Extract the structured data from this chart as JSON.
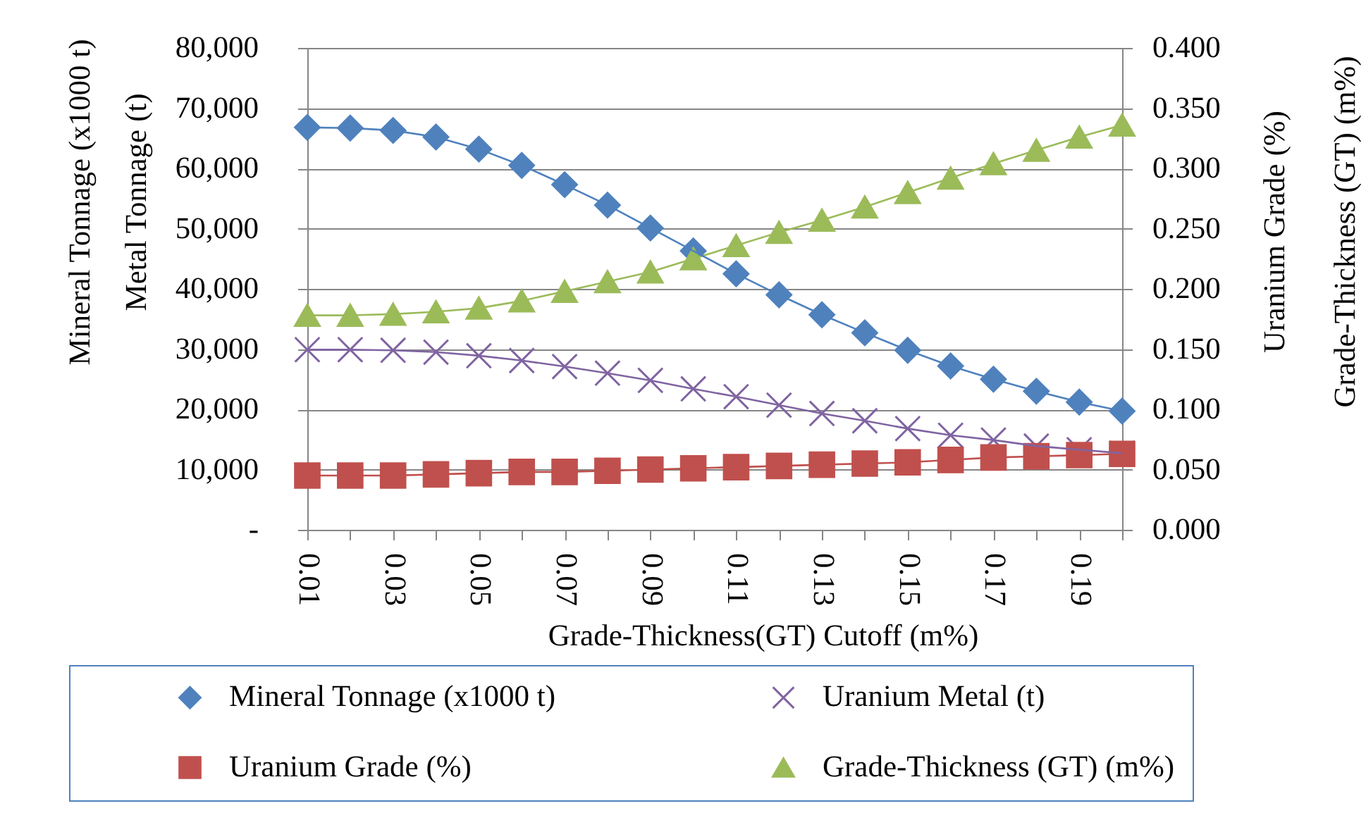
{
  "chart_data": {
    "type": "line",
    "xlabel": "Grade-Thickness(GT) Cutoff (m%)",
    "ylabel": "Mineral Tonnage (x1000 t)\nMetal Tonnage (t)",
    "y2label": "Uranium Grade (%)\nGrade-Thickness (GT) (m%)",
    "categories": [
      "0.01",
      null,
      "0.03",
      null,
      "0.05",
      null,
      "0.07",
      null,
      "0.09",
      null,
      "0.11",
      null,
      "0.13",
      null,
      "0.15",
      null,
      "0.17",
      null,
      "0.19",
      null
    ],
    "series": [
      {
        "name": "Mineral Tonnage (x1000 t)",
        "color": "#4f81bd",
        "marker": "diamond",
        "axis": "y",
        "values": [
          66800,
          66700,
          66300,
          65200,
          63200,
          60500,
          57300,
          53900,
          50100,
          46300,
          42500,
          39000,
          35700,
          32700,
          29800,
          27200,
          25000,
          23000,
          21200,
          19700
        ]
      },
      {
        "name": "Uranium Metal (t)",
        "color": "#8064a2",
        "marker": "cross",
        "axis": "y",
        "values": [
          29900,
          29900,
          29800,
          29500,
          28900,
          28100,
          27100,
          26000,
          24800,
          23400,
          22100,
          20700,
          19300,
          18100,
          16800,
          15700,
          14900,
          13900,
          13300,
          12700
        ]
      },
      {
        "name": "Uranium Grade (%)",
        "color": "#c0504d",
        "marker": "square",
        "axis": "y2",
        "values": [
          0.045,
          0.045,
          0.045,
          0.046,
          0.047,
          0.048,
          0.048,
          0.049,
          0.05,
          0.051,
          0.052,
          0.053,
          0.054,
          0.055,
          0.056,
          0.058,
          0.06,
          0.061,
          0.062,
          0.063
        ]
      },
      {
        "name": "Grade-Thickness (GT) (m%)",
        "color": "#9bbb59",
        "marker": "triangle",
        "axis": "y2",
        "values": [
          0.178,
          0.178,
          0.179,
          0.181,
          0.184,
          0.19,
          0.198,
          0.206,
          0.214,
          0.225,
          0.236,
          0.247,
          0.257,
          0.268,
          0.28,
          0.292,
          0.304,
          0.315,
          0.326,
          0.336
        ]
      }
    ],
    "ylim": [
      0,
      80000
    ],
    "yticks": [
      {
        "value": 0,
        "label": "-"
      },
      {
        "value": 10000,
        "label": "10,000"
      },
      {
        "value": 20000,
        "label": "20,000"
      },
      {
        "value": 30000,
        "label": "30,000"
      },
      {
        "value": 40000,
        "label": "40,000"
      },
      {
        "value": 50000,
        "label": "50,000"
      },
      {
        "value": 60000,
        "label": "60,000"
      },
      {
        "value": 70000,
        "label": "70,000"
      },
      {
        "value": 80000,
        "label": "80,000"
      }
    ],
    "y2lim": [
      0,
      0.4
    ],
    "y2ticks": [
      {
        "value": 0,
        "label": "0.000"
      },
      {
        "value": 0.05,
        "label": "0.050"
      },
      {
        "value": 0.1,
        "label": "0.100"
      },
      {
        "value": 0.15,
        "label": "0.150"
      },
      {
        "value": 0.2,
        "label": "0.200"
      },
      {
        "value": 0.25,
        "label": "0.250"
      },
      {
        "value": 0.3,
        "label": "0.300"
      },
      {
        "value": 0.35,
        "label": "0.350"
      },
      {
        "value": 0.4,
        "label": "0.400"
      }
    ],
    "grid": "y",
    "legend": "bottom"
  }
}
